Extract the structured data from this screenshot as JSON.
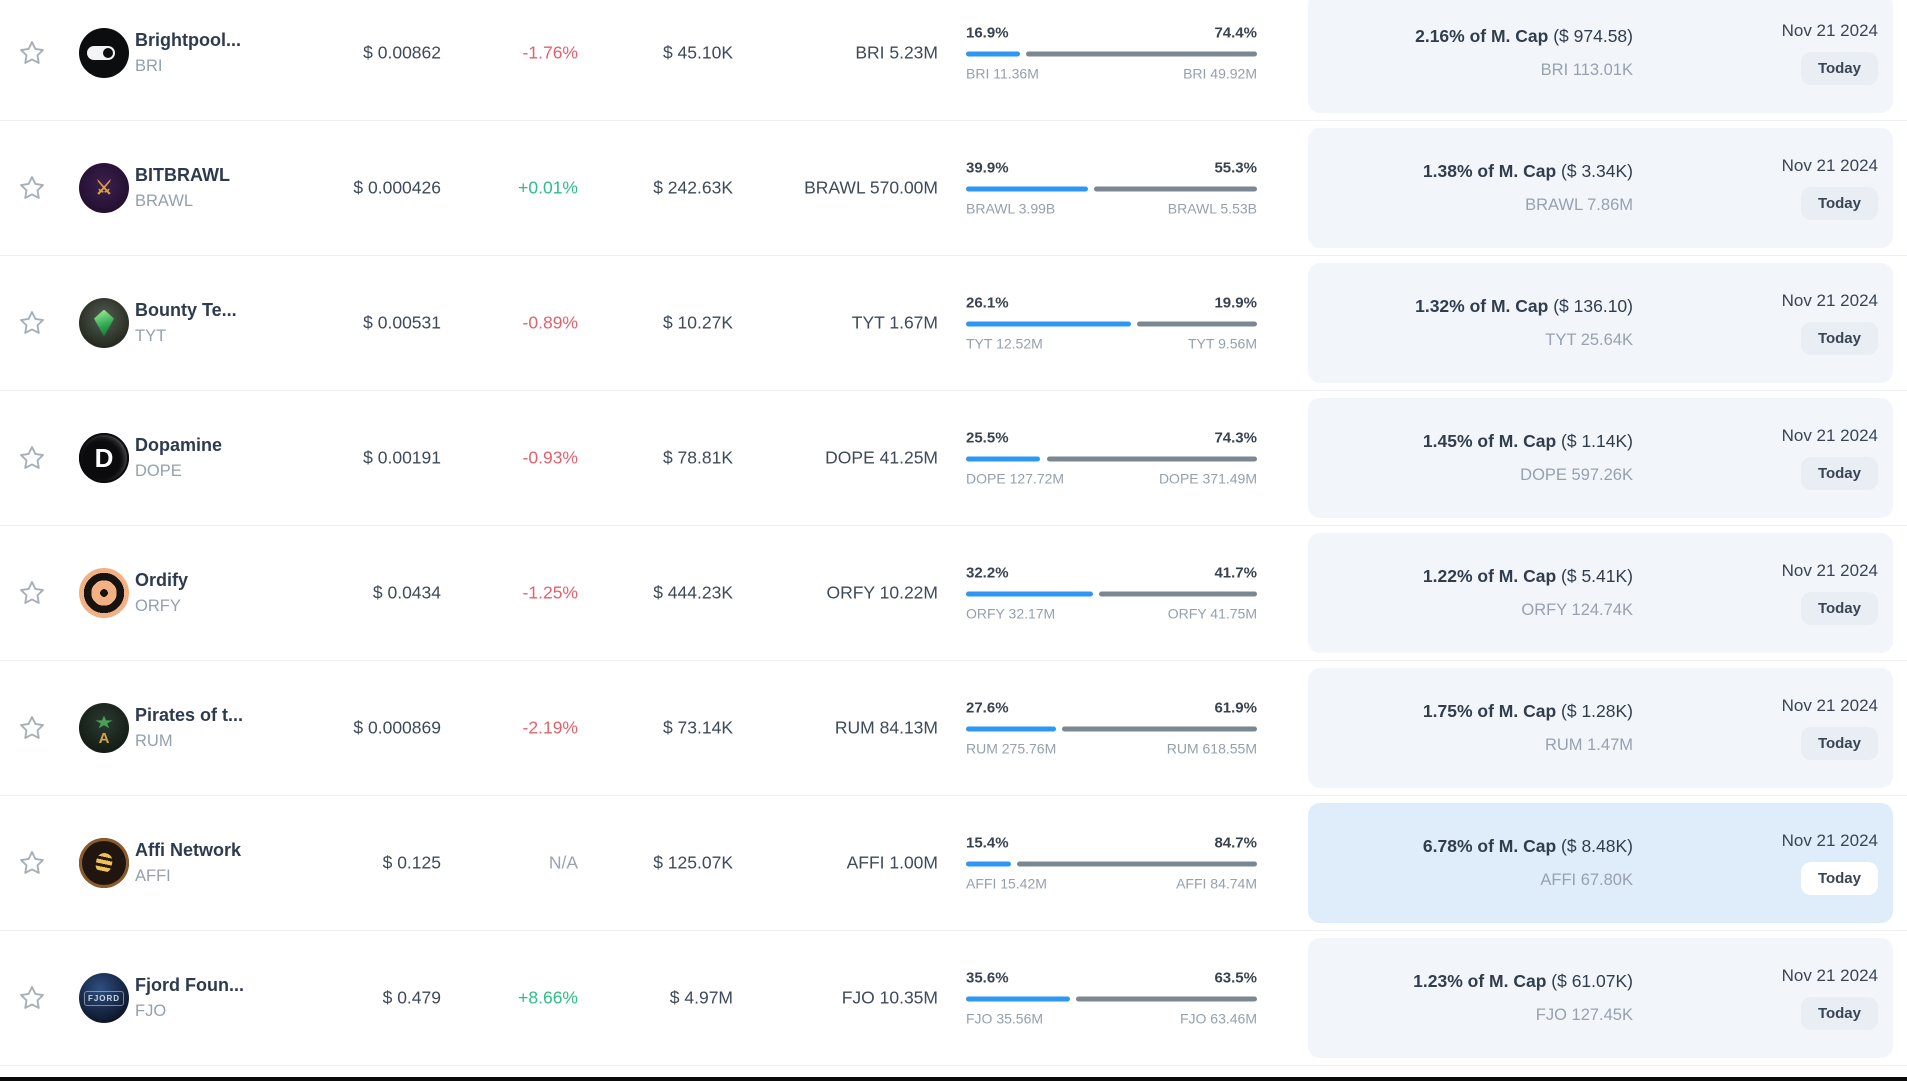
{
  "colors": {
    "accent_blue": "#2e96f5",
    "bar_gray": "#7b8791",
    "positive_green": "#2dbd85",
    "negative_red": "#e6606a",
    "neutral_gray": "#98a3b0",
    "panel_bg": "#f2f6fa",
    "panel_highlight_bg": "#dfedfa",
    "badge_bg": "#e9eef4",
    "badge_highlight_bg": "#ffffff"
  },
  "rows": [
    {
      "name": "Brightpool...",
      "symbol": "BRI",
      "logo": "bri",
      "price": "$ 0.00862",
      "change": "-1.76%",
      "change_dir": "down",
      "volume": "$ 45.10K",
      "supply": "BRI 5.23M",
      "bar": {
        "left_pct": "16.9%",
        "right_pct": "74.4%",
        "left_label": "BRI 11.36M",
        "right_label": "BRI 49.92M",
        "fill": 18.5
      },
      "mcap_bold": "2.16% of M. Cap",
      "mcap_paren": "($ 974.58)",
      "mcap_amount": "BRI 113.01K",
      "date": "Nov 21 2024",
      "badge_label": "Today",
      "highlighted": false
    },
    {
      "name": "BITBRAWL",
      "symbol": "BRAWL",
      "logo": "brawl",
      "price": "$ 0.000426",
      "change": "+0.01%",
      "change_dir": "up",
      "volume": "$ 242.63K",
      "supply": "BRAWL 570.00M",
      "bar": {
        "left_pct": "39.9%",
        "right_pct": "55.3%",
        "left_label": "BRAWL 3.99B",
        "right_label": "BRAWL 5.53B",
        "fill": 41.9
      },
      "mcap_bold": "1.38% of M. Cap",
      "mcap_paren": "($ 3.34K)",
      "mcap_amount": "BRAWL 7.86M",
      "date": "Nov 21 2024",
      "badge_label": "Today",
      "highlighted": false
    },
    {
      "name": "Bounty Te...",
      "symbol": "TYT",
      "logo": "tyt",
      "price": "$ 0.00531",
      "change": "-0.89%",
      "change_dir": "down",
      "volume": "$ 10.27K",
      "supply": "TYT 1.67M",
      "bar": {
        "left_pct": "26.1%",
        "right_pct": "19.9%",
        "left_label": "TYT 12.52M",
        "right_label": "TYT 9.56M",
        "fill": 56.7
      },
      "mcap_bold": "1.32% of M. Cap",
      "mcap_paren": "($ 136.10)",
      "mcap_amount": "TYT 25.64K",
      "date": "Nov 21 2024",
      "badge_label": "Today",
      "highlighted": false
    },
    {
      "name": "Dopamine",
      "symbol": "DOPE",
      "logo": "dope",
      "price": "$ 0.00191",
      "change": "-0.93%",
      "change_dir": "down",
      "volume": "$ 78.81K",
      "supply": "DOPE 41.25M",
      "bar": {
        "left_pct": "25.5%",
        "right_pct": "74.3%",
        "left_label": "DOPE 127.72M",
        "right_label": "DOPE 371.49M",
        "fill": 25.6
      },
      "mcap_bold": "1.45% of M. Cap",
      "mcap_paren": "($ 1.14K)",
      "mcap_amount": "DOPE 597.26K",
      "date": "Nov 21 2024",
      "badge_label": "Today",
      "highlighted": false
    },
    {
      "name": "Ordify",
      "symbol": "ORFY",
      "logo": "orfy",
      "price": "$ 0.0434",
      "change": "-1.25%",
      "change_dir": "down",
      "volume": "$ 444.23K",
      "supply": "ORFY 10.22M",
      "bar": {
        "left_pct": "32.2%",
        "right_pct": "41.7%",
        "left_label": "ORFY 32.17M",
        "right_label": "ORFY 41.75M",
        "fill": 43.5
      },
      "mcap_bold": "1.22% of M. Cap",
      "mcap_paren": "($ 5.41K)",
      "mcap_amount": "ORFY 124.74K",
      "date": "Nov 21 2024",
      "badge_label": "Today",
      "highlighted": false
    },
    {
      "name": "Pirates of t...",
      "symbol": "RUM",
      "logo": "rum",
      "price": "$ 0.000869",
      "change": "-2.19%",
      "change_dir": "down",
      "volume": "$ 73.14K",
      "supply": "RUM 84.13M",
      "bar": {
        "left_pct": "27.6%",
        "right_pct": "61.9%",
        "left_label": "RUM 275.76M",
        "right_label": "RUM 618.55M",
        "fill": 30.8
      },
      "mcap_bold": "1.75% of M. Cap",
      "mcap_paren": "($ 1.28K)",
      "mcap_amount": "RUM 1.47M",
      "date": "Nov 21 2024",
      "badge_label": "Today",
      "highlighted": false
    },
    {
      "name": "Affi Network",
      "symbol": "AFFI",
      "logo": "affi",
      "price": "$ 0.125",
      "change": "N/A",
      "change_dir": "na",
      "volume": "$ 125.07K",
      "supply": "AFFI 1.00M",
      "bar": {
        "left_pct": "15.4%",
        "right_pct": "84.7%",
        "left_label": "AFFI 15.42M",
        "right_label": "AFFI 84.74M",
        "fill": 15.4
      },
      "mcap_bold": "6.78% of M. Cap",
      "mcap_paren": "($ 8.48K)",
      "mcap_amount": "AFFI 67.80K",
      "date": "Nov 21 2024",
      "badge_label": "Today",
      "highlighted": true
    },
    {
      "name": "Fjord Foun...",
      "symbol": "FJO",
      "logo": "fjo",
      "price": "$ 0.479",
      "change": "+8.66%",
      "change_dir": "up",
      "volume": "$ 4.97M",
      "supply": "FJO 10.35M",
      "bar": {
        "left_pct": "35.6%",
        "right_pct": "63.5%",
        "left_label": "FJO 35.56M",
        "right_label": "FJO 63.46M",
        "fill": 35.9
      },
      "mcap_bold": "1.23% of M. Cap",
      "mcap_paren": "($ 61.07K)",
      "mcap_amount": "FJO 127.45K",
      "date": "Nov 21 2024",
      "badge_label": "Today",
      "highlighted": false
    }
  ]
}
